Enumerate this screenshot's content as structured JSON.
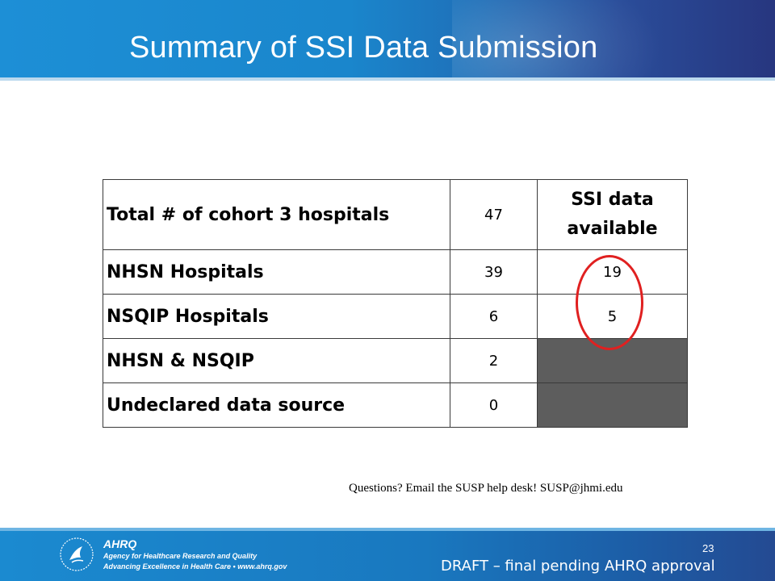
{
  "slide": {
    "title": "Summary of SSI Data Submission",
    "page_number": "23",
    "draft_note": "DRAFT – final pending AHRQ approval",
    "questions_note": "Questions? Email the SUSP help desk! SUSP@jhmi.edu"
  },
  "table": {
    "header": {
      "label": "Total # of cohort 3 hospitals",
      "count": "47",
      "ssi_heading": "SSI data available"
    },
    "rows": [
      {
        "label": "NHSN Hospitals",
        "count": "39",
        "ssi": "19"
      },
      {
        "label": "NSQIP Hospitals",
        "count": "6",
        "ssi": "5"
      },
      {
        "label": "NHSN & NSQIP",
        "count": "2",
        "ssi": ""
      },
      {
        "label": "Undeclared data source",
        "count": "0",
        "ssi": ""
      }
    ],
    "shaded_cell_color": "#5d5d5d",
    "highlight_color": "#e02020"
  },
  "footer": {
    "agency_mark": "AHRQ",
    "agency_name": "Agency for Healthcare Research and Quality",
    "agency_tagline": "Advancing Excellence in Health Care • www.ahrq.gov"
  },
  "colors": {
    "header_blue": "#1d8fd6",
    "footer_blue": "#1978bf"
  }
}
